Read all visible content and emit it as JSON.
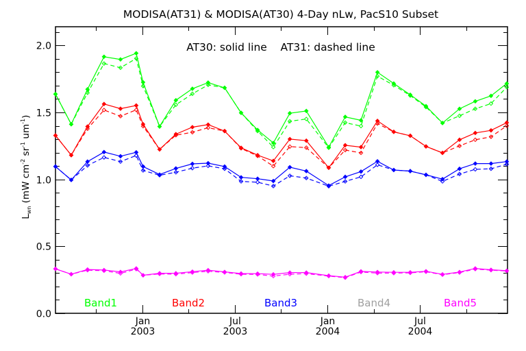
{
  "chart_data": {
    "type": "line",
    "title": "MODISA(AT31) & MODISA(AT30) 4-Day nLw, PacS10 Subset",
    "annotation": "AT30: solid line    AT31: dashed line",
    "ylabel": {
      "main": "L",
      "sub": "wn",
      "units_pre": " (mW cm",
      "sup1": "-2",
      "mid": " sr",
      "sup2": "-1",
      "mid2": " um",
      "sup3": "-1",
      "end": ")"
    },
    "ylim": [
      0,
      2.14
    ],
    "xlim": [
      2002.532,
      2004.972
    ],
    "yticks": [
      {
        "value": 0.0,
        "label": "0.0"
      },
      {
        "value": 0.5,
        "label": "0.5"
      },
      {
        "value": 1.0,
        "label": "1.0"
      },
      {
        "value": 1.5,
        "label": "1.5"
      },
      {
        "value": 2.0,
        "label": "2.0"
      }
    ],
    "yminor_step": 0.1,
    "xticks": [
      {
        "value": 2003.0,
        "line1": "Jan",
        "line2": "2003"
      },
      {
        "value": 2003.5,
        "line1": "Jul",
        "line2": "2003"
      },
      {
        "value": 2004.0,
        "line1": "Jan",
        "line2": "2004"
      },
      {
        "value": 2004.5,
        "line1": "Jul",
        "line2": "2004"
      }
    ],
    "xminor": [
      2002.75,
      2003.25,
      2003.75,
      2004.25,
      2004.75
    ],
    "x": [
      2002.532,
      2002.617,
      2002.705,
      2002.794,
      2002.883,
      2002.968,
      2003.005,
      2003.094,
      2003.182,
      2003.271,
      2003.356,
      2003.445,
      2003.534,
      2003.623,
      2003.708,
      2003.797,
      2003.886,
      2004.007,
      2004.096,
      2004.181,
      2004.27,
      2004.358,
      2004.447,
      2004.532,
      2004.621,
      2004.713,
      2004.798,
      2004.883,
      2004.968
    ],
    "legend": [
      {
        "label": "Band1",
        "color": "#00ff00"
      },
      {
        "label": "Band2",
        "color": "#ff0000"
      },
      {
        "label": "Band3",
        "color": "#0000ff"
      },
      {
        "label": "Band4",
        "color": "#a0a0a0"
      },
      {
        "label": "Band5",
        "color": "#ff00ff"
      }
    ],
    "series": [
      {
        "name": "Band1 AT30",
        "band": "Band1",
        "style": "solid",
        "color": "#00ff00",
        "values": [
          1.637,
          1.412,
          1.673,
          1.916,
          1.896,
          1.942,
          1.725,
          1.395,
          1.591,
          1.677,
          1.723,
          1.684,
          1.497,
          1.369,
          1.272,
          1.494,
          1.511,
          1.241,
          1.467,
          1.441,
          1.8,
          1.716,
          1.632,
          1.547,
          1.421,
          1.527,
          1.583,
          1.624,
          1.716
        ]
      },
      {
        "name": "Band1 AT31",
        "band": "Band1",
        "style": "dashed",
        "color": "#00ff00",
        "values": [
          1.637,
          1.412,
          1.646,
          1.865,
          1.834,
          1.903,
          1.697,
          1.395,
          1.557,
          1.639,
          1.706,
          1.684,
          1.497,
          1.361,
          1.241,
          1.434,
          1.451,
          1.236,
          1.424,
          1.398,
          1.771,
          1.703,
          1.626,
          1.54,
          1.421,
          1.475,
          1.527,
          1.566,
          1.689
        ]
      },
      {
        "name": "Band2 AT30",
        "band": "Band2",
        "style": "solid",
        "color": "#ff0000",
        "values": [
          1.328,
          1.181,
          1.395,
          1.563,
          1.528,
          1.552,
          1.412,
          1.224,
          1.338,
          1.39,
          1.409,
          1.361,
          1.236,
          1.181,
          1.138,
          1.301,
          1.289,
          1.087,
          1.255,
          1.241,
          1.437,
          1.355,
          1.326,
          1.246,
          1.198,
          1.296,
          1.347,
          1.366,
          1.424
        ]
      },
      {
        "name": "Band2 AT31",
        "band": "Band2",
        "style": "dashed",
        "color": "#ff0000",
        "values": [
          1.328,
          1.181,
          1.378,
          1.518,
          1.472,
          1.519,
          1.397,
          1.224,
          1.33,
          1.352,
          1.386,
          1.361,
          1.232,
          1.175,
          1.099,
          1.245,
          1.237,
          1.087,
          1.219,
          1.198,
          1.417,
          1.355,
          1.326,
          1.246,
          1.198,
          1.25,
          1.296,
          1.318,
          1.4
        ]
      },
      {
        "name": "Band3 AT30",
        "band": "Band3",
        "style": "solid",
        "color": "#0000ff",
        "values": [
          1.096,
          0.996,
          1.133,
          1.204,
          1.173,
          1.202,
          1.096,
          1.036,
          1.082,
          1.116,
          1.121,
          1.096,
          1.015,
          1.005,
          0.988,
          1.091,
          1.062,
          0.954,
          1.019,
          1.058,
          1.135,
          1.07,
          1.062,
          1.034,
          1.002,
          1.079,
          1.118,
          1.118,
          1.133
        ]
      },
      {
        "name": "Band3 AT31",
        "band": "Band3",
        "style": "dashed",
        "color": "#0000ff",
        "values": [
          1.096,
          0.996,
          1.104,
          1.164,
          1.133,
          1.178,
          1.067,
          1.031,
          1.053,
          1.084,
          1.101,
          1.079,
          0.985,
          0.979,
          0.95,
          1.027,
          1.01,
          0.949,
          0.985,
          1.019,
          1.109,
          1.07,
          1.062,
          1.034,
          0.985,
          1.04,
          1.075,
          1.079,
          1.113
        ]
      },
      {
        "name": "Band5 AT30",
        "band": "Band5",
        "style": "solid",
        "color": "#ff00ff",
        "values": [
          0.332,
          0.292,
          0.327,
          0.323,
          0.309,
          0.335,
          0.284,
          0.299,
          0.299,
          0.311,
          0.322,
          0.309,
          0.297,
          0.296,
          0.291,
          0.304,
          0.304,
          0.281,
          0.27,
          0.313,
          0.308,
          0.306,
          0.306,
          0.314,
          0.291,
          0.308,
          0.335,
          0.325,
          0.318
        ]
      },
      {
        "name": "Band5 AT31",
        "band": "Band5",
        "style": "dashed",
        "color": "#ff00ff",
        "values": [
          0.332,
          0.292,
          0.322,
          0.318,
          0.298,
          0.33,
          0.284,
          0.294,
          0.292,
          0.304,
          0.314,
          0.305,
          0.292,
          0.29,
          0.278,
          0.292,
          0.296,
          0.278,
          0.266,
          0.308,
          0.3,
          0.3,
          0.302,
          0.31,
          0.288,
          0.304,
          0.33,
          0.322,
          0.316
        ]
      }
    ]
  }
}
